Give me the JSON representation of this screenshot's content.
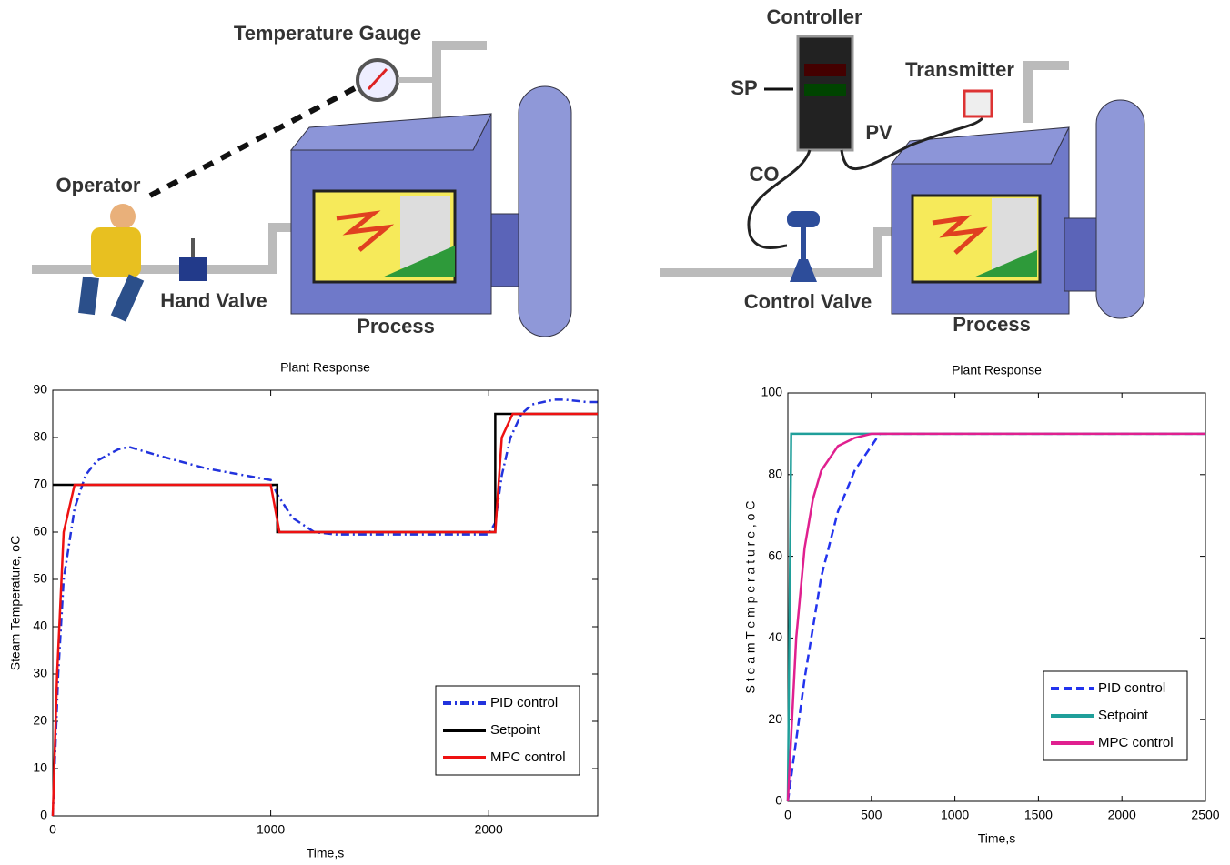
{
  "diagrams": {
    "manual": {
      "temperature_gauge": "Temperature Gauge",
      "operator": "Operator",
      "hand_valve": "Hand Valve",
      "process": "Process"
    },
    "automatic": {
      "controller": "Controller",
      "sp": "SP",
      "pv": "PV",
      "co": "CO",
      "transmitter": "Transmitter",
      "control_valve": "Control Valve",
      "process": "Process"
    }
  },
  "chart_data": [
    {
      "type": "line",
      "title": "Plant Response",
      "xlabel": "Time,s",
      "ylabel": "Steam Temperature, oC",
      "xlim": [
        0,
        2500
      ],
      "ylim": [
        0,
        90
      ],
      "xticks": [
        0,
        1000,
        2000
      ],
      "yticks": [
        0,
        10,
        20,
        30,
        40,
        50,
        60,
        70,
        80,
        90
      ],
      "legend": "lower right",
      "series": [
        {
          "name": "PID control",
          "color": "#2233dd",
          "linestyle": "dashdot",
          "x": [
            0,
            25,
            50,
            100,
            150,
            200,
            300,
            350,
            500,
            700,
            1000,
            1030,
            1100,
            1200,
            1300,
            1600,
            2000,
            2030,
            2060,
            2100,
            2150,
            2200,
            2300,
            2350,
            2450,
            2500
          ],
          "values": [
            0,
            30,
            50,
            65,
            72,
            75,
            77.5,
            78,
            76,
            73.5,
            71,
            68,
            63,
            60,
            59.5,
            59.5,
            59.5,
            62,
            72,
            80,
            85,
            87,
            88,
            88,
            87.5,
            87.5
          ]
        },
        {
          "name": "Setpoint",
          "color": "#000000",
          "linestyle": "solid",
          "x": [
            0,
            1030,
            1030,
            2030,
            2030,
            2500
          ],
          "values": [
            70,
            70,
            60,
            60,
            85,
            85
          ]
        },
        {
          "name": "MPC control",
          "color": "#ee1111",
          "linestyle": "solid",
          "x": [
            0,
            20,
            50,
            100,
            150,
            1000,
            1040,
            2030,
            2060,
            2110,
            2500
          ],
          "values": [
            0,
            30,
            60,
            70,
            70,
            70,
            60,
            60,
            80,
            85,
            85
          ]
        }
      ]
    },
    {
      "type": "line",
      "title": "Plant Response",
      "xlabel": "Time,s",
      "ylabel": "S t e a m  T e m p e r a t u r e , o C",
      "xlim": [
        0,
        2500
      ],
      "ylim": [
        0,
        100
      ],
      "xticks": [
        0,
        500,
        1000,
        1500,
        2000,
        2500
      ],
      "yticks": [
        0,
        20,
        40,
        60,
        80,
        100
      ],
      "legend": "lower right",
      "series": [
        {
          "name": "PID control",
          "color": "#2233ee",
          "linestyle": "dashed",
          "x": [
            0,
            100,
            200,
            300,
            400,
            500,
            550,
            2500
          ],
          "values": [
            0,
            30,
            55,
            71,
            81,
            87,
            90,
            90
          ]
        },
        {
          "name": "Setpoint",
          "color": "#1f9f9a",
          "linestyle": "solid",
          "x": [
            0,
            20,
            2500
          ],
          "values": [
            0,
            90,
            90
          ]
        },
        {
          "name": "MPC control",
          "color": "#e0208f",
          "linestyle": "solid",
          "x": [
            0,
            50,
            100,
            150,
            200,
            300,
            400,
            500,
            2500
          ],
          "values": [
            0,
            40,
            62,
            74,
            81,
            87,
            89,
            90,
            90
          ]
        }
      ]
    }
  ]
}
